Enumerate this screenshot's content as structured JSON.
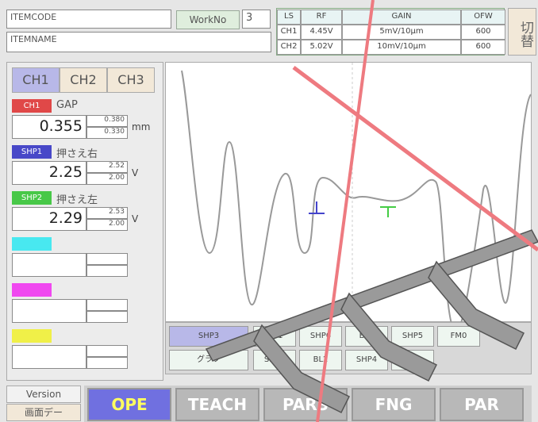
{
  "header": {
    "item_code": "ITEMCODE",
    "item_name": "ITEMNAME",
    "work_no_label": "WorkNo",
    "work_no": "3",
    "switch_button": "切替"
  },
  "settings_table": {
    "headers": [
      "LS",
      "RF",
      "GAIN",
      "OFW"
    ],
    "rows": [
      [
        "CH1",
        "4.45V",
        "5mV/10μm",
        "600"
      ],
      [
        "CH2",
        "5.02V",
        "10mV/10μm",
        "600"
      ]
    ]
  },
  "channel_tabs": [
    "CH1",
    "CH2",
    "CH3"
  ],
  "measurements": [
    {
      "tag": "CH1",
      "name": "GAP",
      "value": "0.355",
      "upper": "0.380",
      "lower": "0.330",
      "unit": "mm"
    },
    {
      "tag": "SHP1",
      "name": "押さえ右",
      "value": "2.25",
      "upper": "2.52",
      "lower": "2.00",
      "unit": "V"
    },
    {
      "tag": "SHP2",
      "name": "押さえ左",
      "value": "2.29",
      "upper": "2.53",
      "lower": "2.00",
      "unit": "V"
    }
  ],
  "graph": {
    "buttons": [
      "SHP3",
      "グラフ",
      "CH1",
      "SHP5",
      "SHP6",
      "BL2",
      "BL3",
      "SHP4",
      "SHP5",
      "FM1",
      "FM0"
    ]
  },
  "footer": {
    "version": "Version",
    "screen_data": "画面デー",
    "tabs": [
      "OPE",
      "TEACH",
      "PARS",
      "FNG",
      "PAR"
    ]
  }
}
